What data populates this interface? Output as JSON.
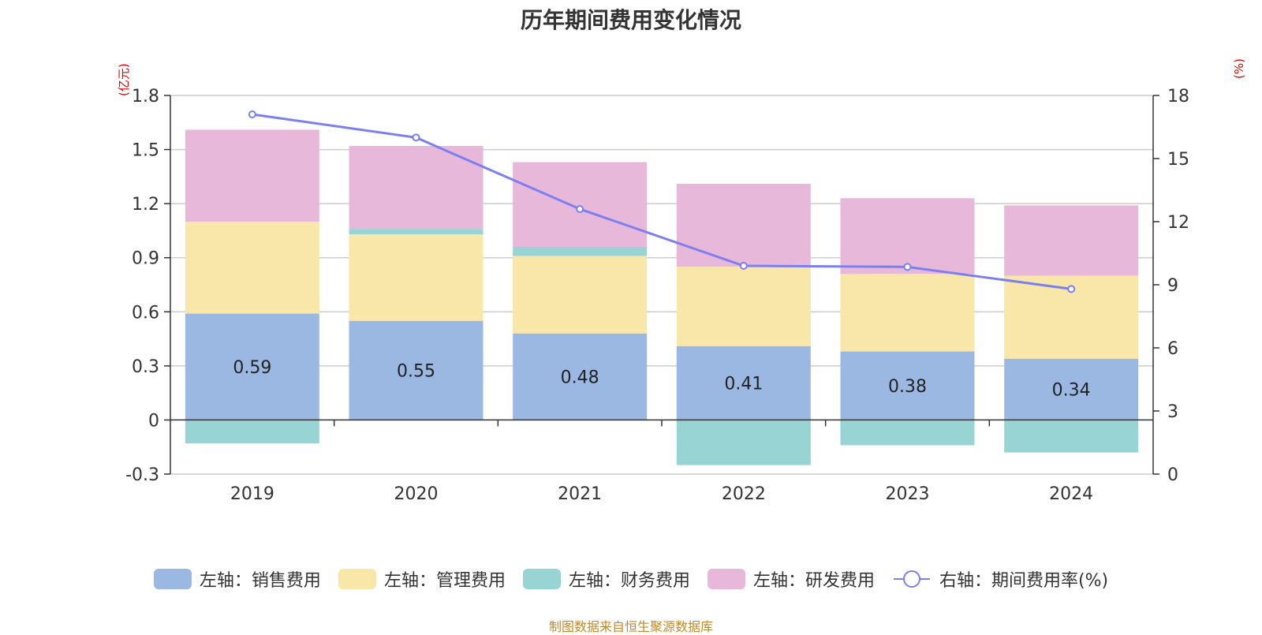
{
  "chart_data": {
    "type": "bar",
    "title": "历年期间费用变化情况",
    "categories": [
      "2019",
      "2020",
      "2021",
      "2022",
      "2023",
      "2024"
    ],
    "left_axis": {
      "unit": "(亿元)",
      "ylim": [
        -0.3,
        1.8
      ],
      "ticks": [
        -0.3,
        0,
        0.3,
        0.6,
        0.9,
        1.2,
        1.5,
        1.8
      ],
      "tick_labels": [
        "-0.3",
        "0",
        "0.3",
        "0.6",
        "0.9",
        "1.2",
        "1.5",
        "1.8"
      ]
    },
    "right_axis": {
      "unit": "(%)",
      "ylim": [
        0,
        18
      ],
      "ticks": [
        0,
        3,
        6,
        9,
        12,
        15,
        18
      ],
      "tick_labels": [
        "0",
        "3",
        "6",
        "9",
        "12",
        "15",
        "18"
      ]
    },
    "series": [
      {
        "name": "左轴：销售费用",
        "color": "#9bb8e2",
        "axis": "left",
        "values": [
          0.59,
          0.55,
          0.48,
          0.41,
          0.38,
          0.34
        ],
        "data_labels": [
          "0.59",
          "0.55",
          "0.48",
          "0.41",
          "0.38",
          "0.34"
        ]
      },
      {
        "name": "左轴：管理费用",
        "color": "#f8e7a8",
        "axis": "left",
        "values": [
          0.51,
          0.48,
          0.43,
          0.44,
          0.43,
          0.46
        ]
      },
      {
        "name": "左轴：财务费用",
        "color": "#98d4d4",
        "axis": "left",
        "values": [
          -0.13,
          0.03,
          0.05,
          -0.25,
          -0.14,
          -0.18
        ]
      },
      {
        "name": "左轴：研发费用",
        "color": "#e8b8da",
        "axis": "left",
        "values": [
          0.51,
          0.46,
          0.47,
          0.46,
          0.42,
          0.39
        ]
      },
      {
        "name": "右轴：期间费用率(%)",
        "color": "#7b7ff0",
        "axis": "right",
        "type": "line",
        "values": [
          17.1,
          16.0,
          12.6,
          9.9,
          9.85,
          8.8
        ]
      }
    ],
    "grid": true,
    "legend_position": "bottom"
  },
  "source_text": "制图数据来自恒生聚源数据库"
}
